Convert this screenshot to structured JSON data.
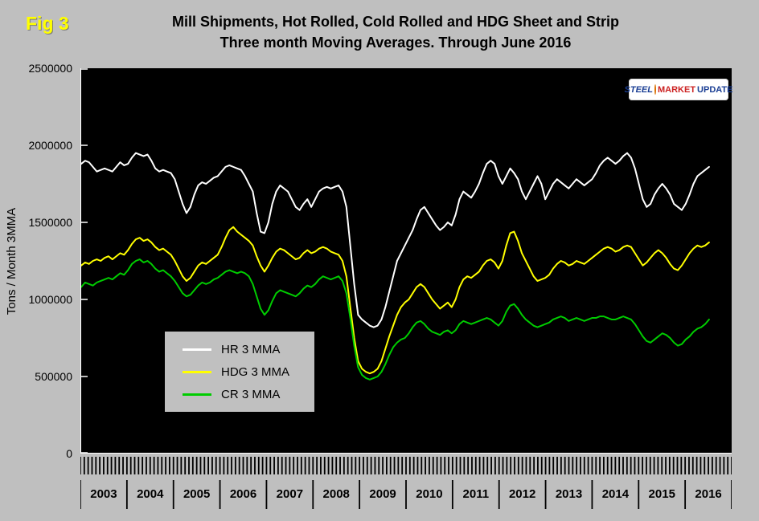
{
  "fig_label": "Fig 3",
  "title_line1": "Mill Shipments, Hot Rolled, Cold Rolled and HDG Sheet and Strip",
  "title_line2": "Three month Moving Averages. Through June 2016",
  "y_axis_label": "Tons / Month 3MMA",
  "y_ticks": [
    "2500000",
    "2000000",
    "1500000",
    "1000000",
    "500000",
    "0"
  ],
  "x_years": [
    "2003",
    "2004",
    "2005",
    "2006",
    "2007",
    "2008",
    "2009",
    "2010",
    "2011",
    "2012",
    "2013",
    "2014",
    "2015",
    "2016"
  ],
  "legend": [
    {
      "label": "HR 3 MMA",
      "color": "#ffffff"
    },
    {
      "label": "HDG 3 MMA",
      "color": "#ffff00"
    },
    {
      "label": "CR 3 MMA",
      "color": "#00cc00"
    }
  ],
  "logo": {
    "word1": "STEEL",
    "word2": "MARKET",
    "word3": "UPDATE"
  },
  "colors": {
    "background": "#bfbfbf",
    "plot_background": "#000000",
    "axis": "#ffffff",
    "fig_label": "#ffff00",
    "hr_line": "#ffffff",
    "hdg_line": "#ffff00",
    "cr_line": "#00cc00"
  },
  "chart_data": {
    "type": "line",
    "title": "Mill Shipments, Hot Rolled, Cold Rolled and HDG Sheet and Strip — Three month Moving Averages. Through June 2016",
    "xlabel": "",
    "ylabel": "Tons / Month 3MMA",
    "ylim": [
      0,
      2500000
    ],
    "y_tick_step": 500000,
    "grid": false,
    "legend_position": "inside-lower-left",
    "x_start": "2003-01",
    "x_end": "2016-06",
    "x_domain_months": 168,
    "x_tick_unit": "month",
    "x_label_unit": "year",
    "series": [
      {
        "name": "HR 3 MMA",
        "color": "#ffffff",
        "values": [
          1880000,
          1900000,
          1890000,
          1860000,
          1830000,
          1840000,
          1850000,
          1840000,
          1830000,
          1860000,
          1890000,
          1870000,
          1880000,
          1920000,
          1950000,
          1940000,
          1930000,
          1940000,
          1900000,
          1850000,
          1830000,
          1840000,
          1830000,
          1820000,
          1780000,
          1700000,
          1620000,
          1560000,
          1600000,
          1680000,
          1740000,
          1760000,
          1750000,
          1770000,
          1790000,
          1800000,
          1830000,
          1860000,
          1870000,
          1860000,
          1850000,
          1840000,
          1800000,
          1750000,
          1700000,
          1560000,
          1440000,
          1430000,
          1500000,
          1620000,
          1700000,
          1740000,
          1720000,
          1700000,
          1650000,
          1600000,
          1580000,
          1620000,
          1650000,
          1600000,
          1650000,
          1700000,
          1720000,
          1730000,
          1720000,
          1730000,
          1740000,
          1700000,
          1600000,
          1350000,
          1100000,
          900000,
          870000,
          850000,
          830000,
          820000,
          830000,
          870000,
          950000,
          1050000,
          1150000,
          1250000,
          1300000,
          1350000,
          1400000,
          1450000,
          1520000,
          1580000,
          1600000,
          1560000,
          1520000,
          1480000,
          1450000,
          1470000,
          1500000,
          1480000,
          1550000,
          1650000,
          1700000,
          1680000,
          1660000,
          1700000,
          1750000,
          1820000,
          1880000,
          1900000,
          1880000,
          1800000,
          1750000,
          1800000,
          1850000,
          1820000,
          1780000,
          1700000,
          1650000,
          1700000,
          1750000,
          1800000,
          1750000,
          1650000,
          1700000,
          1750000,
          1780000,
          1760000,
          1740000,
          1720000,
          1750000,
          1780000,
          1760000,
          1740000,
          1760000,
          1780000,
          1820000,
          1870000,
          1900000,
          1920000,
          1900000,
          1880000,
          1900000,
          1930000,
          1950000,
          1920000,
          1850000,
          1750000,
          1650000,
          1600000,
          1620000,
          1680000,
          1720000,
          1750000,
          1720000,
          1680000,
          1620000,
          1600000,
          1580000,
          1620000,
          1680000,
          1750000,
          1800000,
          1820000,
          1840000,
          1860000
        ]
      },
      {
        "name": "HDG 3 MMA",
        "color": "#ffff00",
        "values": [
          1220000,
          1240000,
          1230000,
          1250000,
          1260000,
          1250000,
          1270000,
          1280000,
          1260000,
          1280000,
          1300000,
          1290000,
          1320000,
          1360000,
          1390000,
          1400000,
          1380000,
          1390000,
          1370000,
          1340000,
          1320000,
          1330000,
          1310000,
          1290000,
          1250000,
          1200000,
          1150000,
          1120000,
          1140000,
          1180000,
          1220000,
          1240000,
          1230000,
          1250000,
          1270000,
          1290000,
          1340000,
          1400000,
          1450000,
          1470000,
          1440000,
          1420000,
          1400000,
          1380000,
          1350000,
          1280000,
          1220000,
          1180000,
          1220000,
          1270000,
          1310000,
          1330000,
          1320000,
          1300000,
          1280000,
          1260000,
          1270000,
          1300000,
          1320000,
          1300000,
          1310000,
          1330000,
          1340000,
          1330000,
          1310000,
          1300000,
          1290000,
          1250000,
          1150000,
          950000,
          750000,
          600000,
          550000,
          530000,
          520000,
          530000,
          550000,
          600000,
          680000,
          760000,
          830000,
          900000,
          950000,
          980000,
          1000000,
          1040000,
          1080000,
          1100000,
          1080000,
          1040000,
          1000000,
          970000,
          940000,
          960000,
          980000,
          950000,
          1000000,
          1080000,
          1130000,
          1150000,
          1140000,
          1160000,
          1180000,
          1220000,
          1250000,
          1260000,
          1240000,
          1200000,
          1250000,
          1350000,
          1430000,
          1440000,
          1380000,
          1300000,
          1250000,
          1200000,
          1150000,
          1120000,
          1130000,
          1140000,
          1160000,
          1200000,
          1230000,
          1250000,
          1240000,
          1220000,
          1230000,
          1250000,
          1240000,
          1230000,
          1250000,
          1270000,
          1290000,
          1310000,
          1330000,
          1340000,
          1330000,
          1310000,
          1320000,
          1340000,
          1350000,
          1340000,
          1300000,
          1260000,
          1220000,
          1240000,
          1270000,
          1300000,
          1320000,
          1300000,
          1270000,
          1230000,
          1200000,
          1190000,
          1220000,
          1260000,
          1300000,
          1330000,
          1350000,
          1340000,
          1350000,
          1370000
        ]
      },
      {
        "name": "CR 3 MMA",
        "color": "#00cc00",
        "values": [
          1080000,
          1110000,
          1100000,
          1090000,
          1110000,
          1120000,
          1130000,
          1140000,
          1130000,
          1150000,
          1170000,
          1160000,
          1190000,
          1230000,
          1250000,
          1260000,
          1240000,
          1250000,
          1230000,
          1200000,
          1180000,
          1190000,
          1170000,
          1150000,
          1120000,
          1080000,
          1040000,
          1020000,
          1030000,
          1060000,
          1090000,
          1110000,
          1100000,
          1110000,
          1130000,
          1140000,
          1160000,
          1180000,
          1190000,
          1180000,
          1170000,
          1180000,
          1170000,
          1150000,
          1100000,
          1020000,
          940000,
          900000,
          930000,
          990000,
          1040000,
          1060000,
          1050000,
          1040000,
          1030000,
          1020000,
          1040000,
          1070000,
          1090000,
          1080000,
          1100000,
          1130000,
          1150000,
          1140000,
          1130000,
          1140000,
          1150000,
          1120000,
          1040000,
          880000,
          700000,
          560000,
          510000,
          490000,
          480000,
          490000,
          500000,
          530000,
          580000,
          640000,
          690000,
          720000,
          740000,
          750000,
          780000,
          820000,
          850000,
          860000,
          840000,
          810000,
          790000,
          780000,
          770000,
          790000,
          800000,
          780000,
          800000,
          840000,
          860000,
          850000,
          840000,
          850000,
          860000,
          870000,
          880000,
          870000,
          850000,
          830000,
          860000,
          920000,
          960000,
          970000,
          940000,
          900000,
          870000,
          850000,
          830000,
          820000,
          830000,
          840000,
          850000,
          870000,
          880000,
          890000,
          880000,
          860000,
          870000,
          880000,
          870000,
          860000,
          870000,
          880000,
          880000,
          890000,
          890000,
          880000,
          870000,
          870000,
          880000,
          890000,
          880000,
          870000,
          840000,
          800000,
          760000,
          730000,
          720000,
          740000,
          760000,
          780000,
          770000,
          750000,
          720000,
          700000,
          710000,
          740000,
          760000,
          790000,
          810000,
          820000,
          840000,
          870000
        ]
      }
    ]
  }
}
